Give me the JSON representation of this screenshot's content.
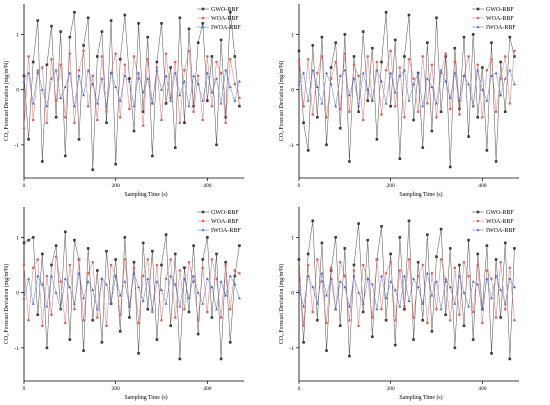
{
  "chart_data": [
    {
      "type": "line",
      "xlabel": "Sampling Time (s)",
      "ylabel": "CO₂ Forecast Deviation (mg/m³N)",
      "xlim": [
        0,
        480
      ],
      "ylim": [
        -1.6,
        1.55
      ],
      "xticks": [
        0,
        200,
        400
      ],
      "yticks": [
        1,
        0,
        -1
      ],
      "legend": "top-right",
      "x_step": 10,
      "series": [
        {
          "name": "GWO-RBF",
          "color": "#3a3a3a",
          "marker": "square",
          "values": [
            0.25,
            -0.9,
            0.5,
            1.25,
            -1.3,
            0.45,
            1.15,
            -0.5,
            1.05,
            -1.2,
            0.95,
            1.4,
            -0.9,
            0.8,
            1.3,
            -1.45,
            0.6,
            1.05,
            -0.6,
            1.25,
            -1.35,
            0.55,
            1.35,
            0.2,
            -0.75,
            1.2,
            -0.4,
            0.95,
            -1.2,
            0.5,
            1.2,
            -0.25,
            0.4,
            -1.05,
            1.3,
            -0.6,
            1.1,
            -0.3,
            0.85,
            1.2,
            -0.2,
            0.6,
            -1.0,
            0.9,
            -0.5,
            1.4,
            0.6,
            -0.3
          ]
        },
        {
          "name": "WOA-RBF",
          "color": "#e8605a",
          "marker": "circle",
          "values": [
            -0.7,
            0.6,
            -0.55,
            0.3,
            0.4,
            -0.6,
            0.55,
            -0.2,
            0.45,
            -0.5,
            0.65,
            -0.6,
            0.35,
            0.7,
            -0.3,
            0.25,
            -0.55,
            0.6,
            -0.4,
            0.3,
            0.65,
            -0.5,
            0.45,
            -0.35,
            0.6,
            0.2,
            -0.65,
            0.55,
            -0.25,
            0.4,
            -0.55,
            0.65,
            -0.15,
            0.5,
            -0.6,
            0.35,
            0.7,
            -0.4,
            0.25,
            -0.55,
            0.6,
            -0.3,
            0.5,
            0.3,
            -0.6,
            0.55,
            0.1,
            -0.15
          ]
        },
        {
          "name": "IWOA-RBF",
          "color": "#3d6fd8",
          "marker": "triangle",
          "values": [
            0.15,
            0.3,
            -0.25,
            0.35,
            0.0,
            -0.3,
            0.2,
            0.35,
            -0.15,
            0.05,
            0.3,
            -0.3,
            0.25,
            -0.1,
            0.35,
            0.1,
            -0.25,
            0.2,
            -0.3,
            0.3,
            0.05,
            -0.2,
            0.25,
            0.15,
            -0.3,
            0.3,
            -0.05,
            0.2,
            -0.25,
            0.35,
            0.0,
            0.25,
            -0.2,
            0.3,
            -0.1,
            0.15,
            -0.3,
            0.25,
            0.1,
            -0.2,
            0.3,
            -0.05,
            0.2,
            -0.25,
            0.35,
            0.05,
            -0.2,
            0.15
          ]
        }
      ]
    },
    {
      "type": "line",
      "xlabel": "Sampling Time (s)",
      "ylabel": "CO₂ Forecast Deviation (mg/m³N)",
      "xlim": [
        0,
        480
      ],
      "ylim": [
        -1.6,
        1.55
      ],
      "xticks": [
        0,
        200,
        400
      ],
      "yticks": [
        1,
        0,
        -1
      ],
      "legend": "top-right",
      "x_step": 10,
      "series": [
        {
          "name": "GWO-RBF",
          "color": "#3a3a3a",
          "marker": "square",
          "values": [
            0.7,
            -0.6,
            -1.1,
            0.8,
            -0.5,
            0.95,
            -1.0,
            0.4,
            0.85,
            -0.7,
            1.0,
            -1.3,
            0.6,
            -0.4,
            1.05,
            -0.2,
            0.75,
            -0.9,
            0.5,
            1.4,
            -0.3,
            0.9,
            -1.25,
            0.6,
            1.35,
            -0.55,
            0.3,
            -1.05,
            0.85,
            -0.75,
            1.3,
            -0.4,
            0.6,
            -1.4,
            0.75,
            -0.35,
            0.95,
            -0.85,
            1.0,
            -0.5,
            0.4,
            -1.1,
            0.85,
            -1.3,
            0.5,
            -0.4,
            0.95,
            0.6
          ]
        },
        {
          "name": "WOA-RBF",
          "color": "#e8605a",
          "marker": "circle",
          "values": [
            0.5,
            -0.3,
            0.55,
            -0.45,
            0.3,
            0.6,
            -0.5,
            0.2,
            0.5,
            -0.35,
            0.65,
            -0.4,
            0.45,
            0.25,
            -0.55,
            0.6,
            -0.2,
            0.5,
            -0.45,
            0.35,
            0.7,
            -0.3,
            0.4,
            -0.5,
            0.55,
            0.2,
            -0.4,
            0.6,
            -0.25,
            0.45,
            -0.5,
            0.3,
            0.65,
            -0.35,
            0.5,
            -0.45,
            0.25,
            0.6,
            -0.3,
            0.45,
            -0.5,
            0.35,
            0.55,
            -0.4,
            0.2,
            0.6,
            -0.25,
            0.7
          ]
        },
        {
          "name": "IWOA-RBF",
          "color": "#3d6fd8",
          "marker": "triangle",
          "values": [
            0.1,
            0.3,
            -0.2,
            0.35,
            0.05,
            -0.25,
            0.3,
            0.1,
            -0.3,
            0.25,
            0.35,
            -0.1,
            0.2,
            -0.3,
            0.3,
            0.0,
            -0.2,
            0.35,
            0.15,
            -0.25,
            0.3,
            -0.05,
            0.25,
            0.35,
            -0.2,
            0.1,
            0.3,
            -0.3,
            0.2,
            0.05,
            -0.25,
            0.35,
            0.15,
            -0.15,
            0.3,
            -0.2,
            0.25,
            0.1,
            -0.3,
            0.35,
            0.0,
            -0.2,
            0.25,
            0.3,
            -0.1,
            0.2,
            0.35,
            0.1
          ]
        }
      ]
    },
    {
      "type": "line",
      "xlabel": "Sampling Time (s)",
      "ylabel": "CO₂ Forecast Deviation (mg/m³N)",
      "xlim": [
        0,
        480
      ],
      "ylim": [
        -1.6,
        1.55
      ],
      "xticks": [
        0,
        200,
        400
      ],
      "yticks": [
        1,
        0,
        -1
      ],
      "legend": "top-right",
      "x_step": 10,
      "series": [
        {
          "name": "GWO-RBF",
          "color": "#3a3a3a",
          "marker": "square",
          "values": [
            0.9,
            0.95,
            1.0,
            -0.4,
            0.7,
            -1.0,
            0.5,
            0.85,
            -0.3,
            1.1,
            -0.85,
            0.95,
            0.6,
            -1.05,
            0.8,
            -0.5,
            0.4,
            -0.9,
            0.75,
            -0.2,
            0.6,
            -0.7,
            1.0,
            -0.45,
            0.55,
            -1.1,
            0.9,
            -0.3,
            0.75,
            -0.85,
            0.5,
            1.05,
            -0.6,
            0.7,
            -1.2,
            0.45,
            -0.35,
            0.85,
            -0.75,
            0.6,
            1.0,
            -0.45,
            0.7,
            -1.2,
            0.55,
            -0.9,
            0.3,
            0.85
          ]
        },
        {
          "name": "WOA-RBF",
          "color": "#e8605a",
          "marker": "circle",
          "values": [
            0.5,
            -0.5,
            0.45,
            0.6,
            -0.6,
            0.3,
            -0.4,
            0.65,
            0.2,
            -0.55,
            0.5,
            -0.3,
            0.6,
            -0.5,
            0.35,
            0.55,
            -0.45,
            0.25,
            -0.6,
            0.5,
            0.3,
            -0.4,
            0.6,
            -0.25,
            0.45,
            -0.55,
            0.3,
            0.6,
            -0.35,
            0.5,
            -0.5,
            0.25,
            0.6,
            -0.45,
            0.4,
            -0.3,
            0.55,
            0.2,
            -0.5,
            0.45,
            -0.35,
            0.6,
            0.25,
            -0.45,
            0.5,
            -0.3,
            0.4,
            0.35
          ]
        },
        {
          "name": "IWOA-RBF",
          "color": "#3d6fd8",
          "marker": "triangle",
          "values": [
            -0.1,
            0.25,
            -0.2,
            0.3,
            0.15,
            -0.25,
            0.3,
            0.0,
            -0.3,
            0.25,
            0.1,
            -0.2,
            0.35,
            -0.1,
            0.2,
            0.05,
            -0.3,
            0.25,
            0.15,
            -0.2,
            0.3,
            -0.05,
            0.2,
            -0.25,
            0.35,
            0.1,
            -0.15,
            0.25,
            -0.3,
            0.2,
            0.05,
            -0.2,
            0.3,
            0.15,
            -0.25,
            0.25,
            -0.1,
            0.3,
            0.0,
            -0.2,
            0.25,
            0.1,
            -0.3,
            0.2,
            -0.05,
            0.3,
            0.15,
            -0.1
          ]
        }
      ]
    },
    {
      "type": "line",
      "xlabel": "Sampling Time (s)",
      "ylabel": "CO₂ Forecast Deviation (mg/m³N)",
      "xlim": [
        0,
        480
      ],
      "ylim": [
        -1.6,
        1.55
      ],
      "xticks": [
        0,
        200,
        400
      ],
      "yticks": [
        1,
        0,
        -1
      ],
      "legend": "top-right",
      "x_step": 10,
      "series": [
        {
          "name": "GWO-RBF",
          "color": "#3a3a3a",
          "marker": "square",
          "values": [
            0.6,
            -0.9,
            0.7,
            1.3,
            -0.5,
            0.9,
            -1.05,
            0.4,
            1.0,
            -0.6,
            0.8,
            -1.15,
            0.5,
            1.25,
            -0.35,
            0.95,
            -0.8,
            0.6,
            1.2,
            -0.5,
            0.7,
            -0.95,
            1.0,
            -0.3,
            1.3,
            -0.85,
            0.55,
            -0.5,
            1.05,
            -0.7,
            0.65,
            1.15,
            -0.4,
            0.8,
            -1.0,
            0.5,
            -0.6,
            0.95,
            -0.85,
            0.7,
            -0.3,
            0.85,
            -1.1,
            0.6,
            -0.45,
            0.9,
            -1.2,
            0.8
          ]
        },
        {
          "name": "WOA-RBF",
          "color": "#e8605a",
          "marker": "circle",
          "values": [
            0.4,
            -0.6,
            0.5,
            -0.35,
            0.6,
            0.2,
            -0.55,
            0.45,
            -0.3,
            0.55,
            0.3,
            -0.5,
            0.4,
            -0.6,
            0.5,
            0.25,
            -0.45,
            0.6,
            -0.3,
            0.35,
            0.55,
            -0.5,
            0.4,
            -0.25,
            0.6,
            -0.45,
            0.3,
            0.5,
            -0.55,
            0.35,
            -0.3,
            0.6,
            0.2,
            -0.5,
            0.45,
            -0.4,
            0.55,
            0.3,
            -0.35,
            0.5,
            -0.55,
            0.4,
            0.25,
            -0.45,
            0.55,
            -0.3,
            0.45,
            -0.5
          ]
        },
        {
          "name": "IWOA-RBF",
          "color": "#3d6fd8",
          "marker": "triangle",
          "values": [
            0.05,
            -0.25,
            0.3,
            0.1,
            -0.2,
            0.35,
            -0.05,
            0.25,
            -0.3,
            0.2,
            0.1,
            -0.25,
            0.3,
            0.0,
            -0.2,
            0.25,
            0.15,
            -0.3,
            0.3,
            -0.1,
            0.2,
            0.05,
            -0.25,
            0.3,
            -0.15,
            0.25,
            0.1,
            -0.2,
            0.35,
            -0.05,
            0.2,
            -0.3,
            0.25,
            0.1,
            -0.2,
            0.3,
            0.0,
            -0.25,
            0.2,
            0.15,
            -0.3,
            0.25,
            -0.1,
            0.3,
            0.05,
            -0.2,
            0.25,
            0.1
          ]
        }
      ]
    }
  ]
}
